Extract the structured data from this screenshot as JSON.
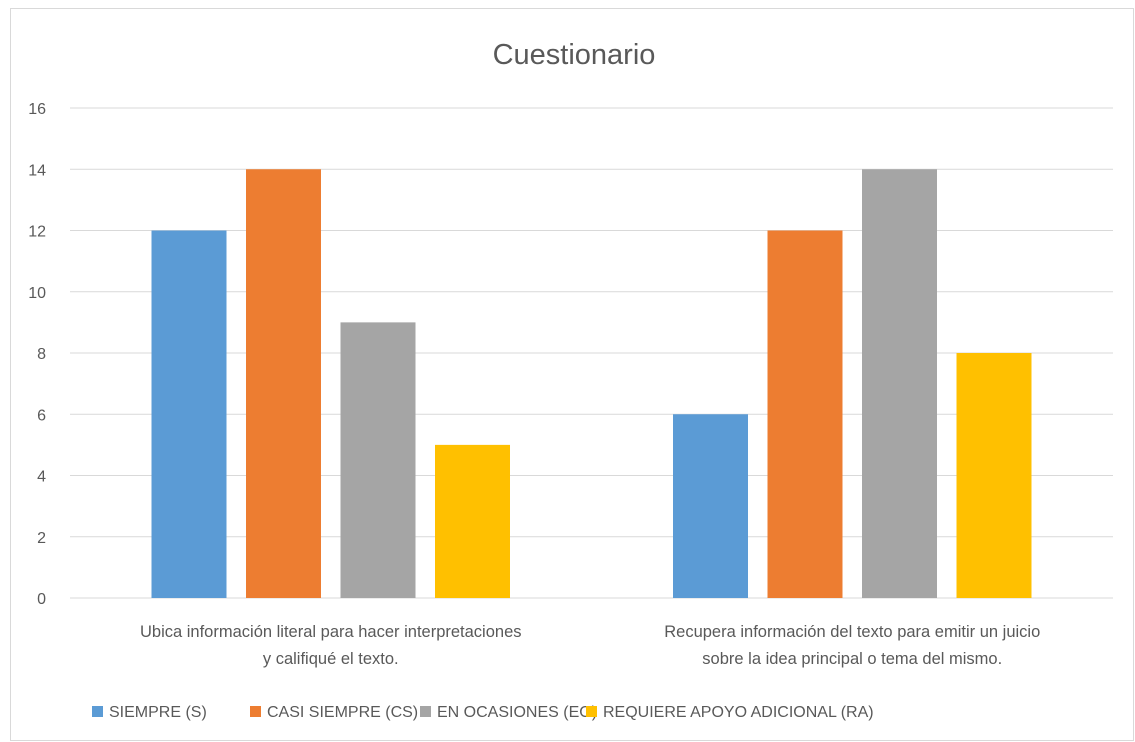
{
  "chart_data": {
    "type": "bar",
    "title": "Cuestionario",
    "xlabel": "",
    "ylabel": "",
    "ylim": [
      0,
      16
    ],
    "yticks": [
      0,
      2,
      4,
      6,
      8,
      10,
      12,
      14,
      16
    ],
    "grid": true,
    "legend_position": "bottom",
    "categories": [
      [
        "Ubica información literal para hacer interpretaciones",
        "y califiqué el texto."
      ],
      [
        "Recupera información del texto para emitir un juicio",
        "sobre la idea principal o tema del mismo."
      ]
    ],
    "series": [
      {
        "name": "SIEMPRE (S)",
        "color": "#5b9bd5",
        "values": [
          12,
          6
        ]
      },
      {
        "name": "CASI SIEMPRE (CS)",
        "color": "#ed7d31",
        "values": [
          14,
          12
        ]
      },
      {
        "name": "EN OCASIONES (EO)",
        "color": "#a5a5a5",
        "values": [
          9,
          14
        ]
      },
      {
        "name": "REQUIERE APOYO ADICIONAL (RA)",
        "color": "#ffc000",
        "values": [
          5,
          8
        ]
      }
    ]
  }
}
